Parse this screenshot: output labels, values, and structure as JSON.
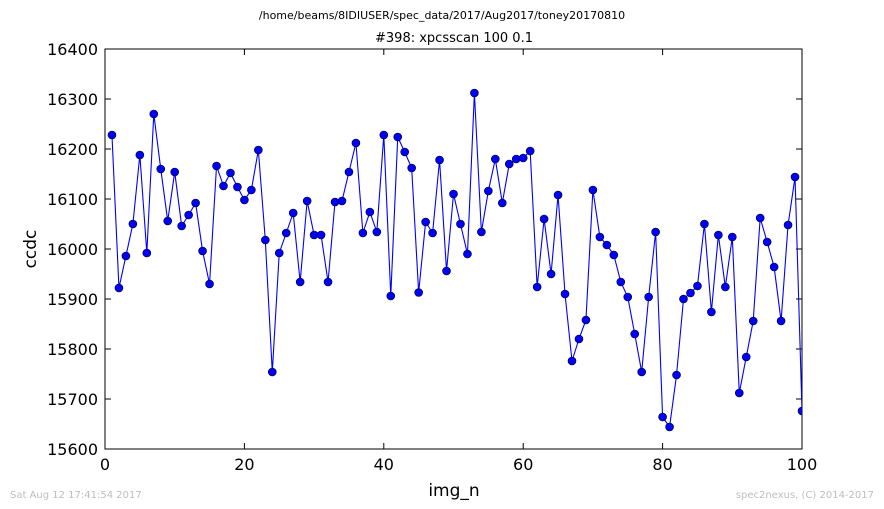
{
  "header": {
    "path": "/home/beams/8IDIUSER/spec_data/2017/Aug2017/toney20170810"
  },
  "footer": {
    "timestamp": "Sat Aug 12 17:41:54 2017",
    "credit": "spec2nexus, (C) 2014-2017"
  },
  "chart_data": {
    "type": "line",
    "title": "#398: xpcsscan 100 0.1",
    "xlabel": "img_n",
    "ylabel": "ccdc",
    "xlim": [
      0,
      100
    ],
    "ylim": [
      15600,
      16400
    ],
    "xticks": [
      0,
      20,
      40,
      60,
      80,
      100
    ],
    "yticks": [
      15600,
      15700,
      15800,
      15900,
      16000,
      16100,
      16200,
      16300,
      16400
    ],
    "grid": false,
    "marker": "circle",
    "color": "#0000ff",
    "series": [
      {
        "x": [
          1,
          2,
          3,
          4,
          5,
          6,
          7,
          8,
          9,
          10,
          11,
          12,
          13,
          14,
          15,
          16,
          17,
          18,
          19,
          20,
          21,
          22,
          23,
          24,
          25,
          26,
          27,
          28,
          29,
          30,
          31,
          32,
          33,
          34,
          35,
          36,
          37,
          38,
          39,
          40,
          41,
          42,
          43,
          44,
          45,
          46,
          47,
          48,
          49,
          50,
          51,
          52,
          53,
          54,
          55,
          56,
          57,
          58,
          59,
          60,
          61,
          62,
          63,
          64,
          65,
          66,
          67,
          68,
          69,
          70,
          71,
          72,
          73,
          74,
          75,
          76,
          77,
          78,
          79,
          80,
          81,
          82,
          83,
          84,
          85,
          86,
          87,
          88,
          89,
          90,
          91,
          92,
          93,
          94,
          95,
          96,
          97,
          98,
          99,
          100
        ],
        "y": [
          16228,
          15922,
          15986,
          16050,
          16188,
          15992,
          16270,
          16160,
          16056,
          16154,
          16046,
          16068,
          16092,
          15996,
          15930,
          16166,
          16126,
          16152,
          16124,
          16098,
          16118,
          16198,
          16018,
          15754,
          15992,
          16032,
          16072,
          15934,
          16096,
          16028,
          16028,
          15934,
          16094,
          16096,
          16154,
          16212,
          16032,
          16074,
          16034,
          16228,
          15906,
          16224,
          16194,
          16162,
          15913,
          16054,
          16032,
          16178,
          15956,
          16110,
          16050,
          15990,
          16312,
          16034,
          16116,
          16180,
          16092,
          16170,
          16180,
          16182,
          16196,
          15924,
          16060,
          15950,
          16108,
          15910,
          15776,
          15820,
          15858,
          16118,
          16024,
          16008,
          15988,
          15934,
          15904,
          15830,
          15754,
          15904,
          16034,
          15664,
          15644,
          15748,
          15900,
          15912,
          15926,
          16050,
          15874,
          16028,
          15924,
          16024,
          15712,
          15784,
          15856,
          16062,
          16014,
          15964,
          15856,
          16048,
          16144,
          15676
        ]
      }
    ]
  }
}
